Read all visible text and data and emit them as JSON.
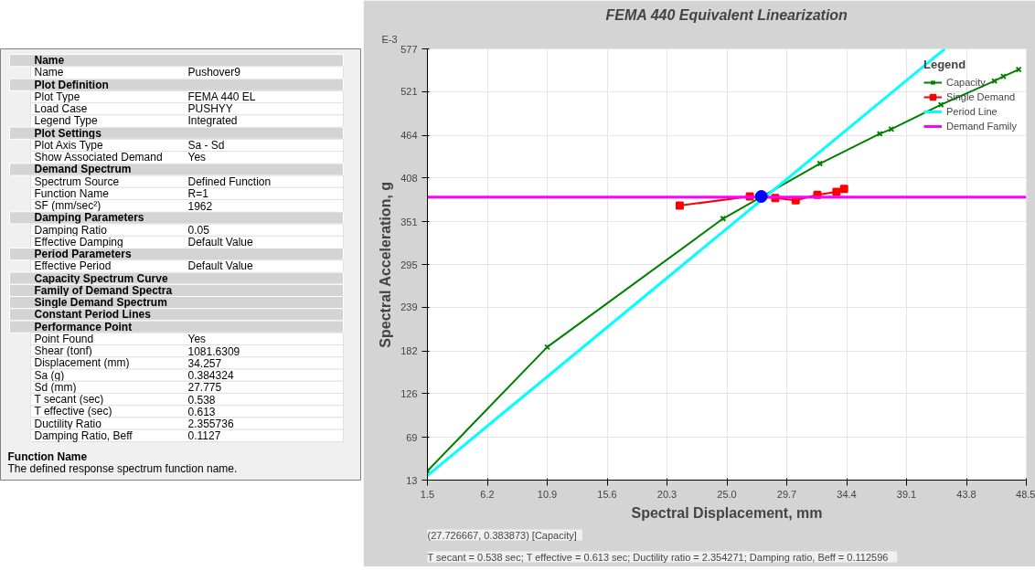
{
  "chart_data": [
    {
      "type": "other",
      "categories": [
        "Name",
        "Name",
        "Plot Definition",
        "Plot Type",
        "Load Case",
        "Legend Type",
        "Plot Settings",
        "Plot Axis Type",
        "Show Associated Demand",
        "Demand Spectrum",
        "Spectrum Source",
        "Function Name",
        "SF (mm/sec²)",
        "Damping Parameters",
        "Damping Ratio",
        "Effective Damping",
        "Period Parameters",
        "Effective Period",
        "Capacity Spectrum Curve",
        "Family of Demand Spectra",
        "Single Demand Spectrum",
        "Constant Period Lines",
        "Performance Point",
        "Point Found",
        "Shear (tonf)",
        "Displacement (mm)",
        "Sa (g)",
        "Sd (mm)",
        "T secant (sec)",
        "T effective (sec)",
        "Ductility Ratio",
        "Damping Ratio, Beff"
      ],
      "cell_labels": [
        null,
        [
          "Pushover9"
        ],
        null,
        [
          "FEMA 440 EL"
        ],
        [
          "PUSHYY"
        ],
        [
          "Integrated"
        ],
        null,
        [
          "Sa - Sd"
        ],
        [
          "Yes"
        ],
        null,
        [
          "Defined Function"
        ],
        [
          "R=1"
        ],
        [
          "1962"
        ],
        null,
        [
          "0.05"
        ],
        [
          "Default Value"
        ],
        null,
        [
          "Default Value"
        ],
        null,
        null,
        null,
        null,
        null,
        [
          "Yes"
        ],
        [
          "1081.6309"
        ],
        [
          "34.257"
        ],
        [
          "0.384324"
        ],
        [
          "27.775"
        ],
        [
          "0.538"
        ],
        [
          "0.613"
        ],
        [
          "2.355736"
        ],
        [
          "0.1127"
        ]
      ],
      "annotations": [
        "Function Name",
        "The defined response spectrum function name."
      ]
    },
    {
      "type": "line",
      "title": "FEMA 440 Equivalent Linearization",
      "xlabel": "Spectral Displacement, mm",
      "ylabel": "Spectral Acceleration, g",
      "legend_title": "Legend",
      "legend": "top right",
      "grid": true,
      "xlim": [
        1.5,
        48.5
      ],
      "xticks": [
        1.5,
        6.2,
        10.9,
        15.6,
        20.3,
        {
          "value": 25,
          "label": "25.0"
        },
        29.7,
        34.4,
        39.1,
        43.8,
        48.5
      ],
      "ylim": [
        13,
        577
      ],
      "yticks": [
        13,
        69,
        126,
        182,
        239,
        295,
        351,
        408,
        464,
        521,
        577
      ],
      "series": [
        {
          "name": "Capacity",
          "type": "line",
          "marker": "cross",
          "color": "#008000",
          "x": [
            1.5,
            10.9,
            24.7,
            32.3,
            37.0,
            37.9,
            41.8,
            46.0,
            46.7,
            47.9
          ],
          "values": [
            25,
            187,
            355,
            427,
            466,
            472,
            504,
            535,
            541,
            550
          ]
        },
        {
          "name": "Single Demand",
          "type": "line",
          "marker": "square",
          "color": "#ff0000",
          "x": [
            21.3,
            26.8,
            28.8,
            30.4,
            32.1,
            33.6,
            34.2
          ],
          "values": [
            372,
            384,
            382,
            379,
            386,
            390,
            394
          ]
        },
        {
          "name": "Period Line",
          "type": "line",
          "marker": "none",
          "color": "#00ffff",
          "x": [
            1.5,
            42.1
          ],
          "values": [
            19,
            577
          ]
        },
        {
          "name": "Demand Family",
          "type": "line",
          "marker": "none",
          "color": "#ff00ff",
          "x": [
            1.5,
            48.5
          ],
          "values": [
            383,
            383
          ]
        },
        {
          "type": "scatter",
          "marker": "circle",
          "color": "#0000ff",
          "x": [
            27.7
          ],
          "values": [
            384
          ]
        }
      ],
      "annotations": [
        "E-3",
        "(27.726667, 0.383873)   [Capacity]",
        "T secant = 0.538 sec;  T effective = 0.613 sec;  Ductility ratio = 2.354271;  Damping ratio, Beff = 0.112596"
      ]
    }
  ]
}
